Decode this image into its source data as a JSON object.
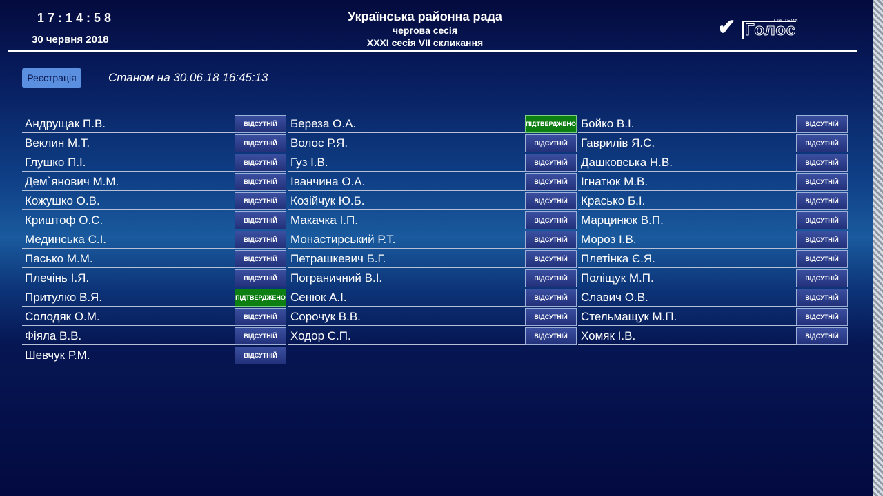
{
  "header": {
    "time": "17:14:58",
    "date": "30 червня 2018",
    "title": "Українська районна рада",
    "subtitle": "чергова сесія",
    "session": "XXXI сесія VII скликання",
    "logo_small": "СИСТЕМА",
    "logo": "Голос"
  },
  "toolbar": {
    "button": "Реєстрація",
    "status": "Станом на 30.06.18 16:45:13"
  },
  "columns": [
    [
      {
        "name": "Андрущак П.В.",
        "status": "ВІДСУТНІЙ"
      },
      {
        "name": "Веклин М.Т.",
        "status": "ВІДСУТНІЙ"
      },
      {
        "name": "Глушко П.І.",
        "status": "ВІДСУТНІЙ"
      },
      {
        "name": "Дем`янович М.М.",
        "status": "ВІДСУТНІЙ"
      },
      {
        "name": "Кожушко О.В.",
        "status": "ВІДСУТНІЙ"
      },
      {
        "name": "Криштоф О.С.",
        "status": "ВІДСУТНІЙ"
      },
      {
        "name": "Мединська С.І.",
        "status": "ВІДСУТНІЙ"
      },
      {
        "name": "Пасько М.М.",
        "status": "ВІДСУТНІЙ"
      },
      {
        "name": "Плечінь І.Я.",
        "status": "ВІДСУТНІЙ"
      },
      {
        "name": "Притулко В.Я.",
        "status": "ПІДТВЕРДЖЕНО"
      },
      {
        "name": "Солодяк О.М.",
        "status": "ВІДСУТНІЙ"
      },
      {
        "name": "Фіяла В.В.",
        "status": "ВІДСУТНІЙ"
      },
      {
        "name": "Шевчук Р.М.",
        "status": "ВІДСУТНІЙ"
      }
    ],
    [
      {
        "name": "Береза О.А.",
        "status": "ПІДТВЕРДЖЕНО"
      },
      {
        "name": "Волос Р.Я.",
        "status": "ВІДСУТНІЙ"
      },
      {
        "name": "Гуз І.В.",
        "status": "ВІДСУТНІЙ"
      },
      {
        "name": "Іванчина О.А.",
        "status": "ВІДСУТНІЙ"
      },
      {
        "name": "Козійчук Ю.Б.",
        "status": "ВІДСУТНІЙ"
      },
      {
        "name": "Макачка І.П.",
        "status": "ВІДСУТНІЙ"
      },
      {
        "name": "Монастирський Р.Т.",
        "status": "ВІДСУТНІЙ"
      },
      {
        "name": "Петрашкевич Б.Г.",
        "status": "ВІДСУТНІЙ"
      },
      {
        "name": "Пограничний В.І.",
        "status": "ВІДСУТНІЙ"
      },
      {
        "name": "Сенюк А.І.",
        "status": "ВІДСУТНІЙ"
      },
      {
        "name": "Сорочук В.В.",
        "status": "ВІДСУТНІЙ"
      },
      {
        "name": "Ходор С.П.",
        "status": "ВІДСУТНІЙ"
      }
    ],
    [
      {
        "name": "Бойко В.І.",
        "status": "ВІДСУТНІЙ"
      },
      {
        "name": "Гаврилів Я.С.",
        "status": "ВІДСУТНІЙ"
      },
      {
        "name": "Дашковська Н.В.",
        "status": "ВІДСУТНІЙ"
      },
      {
        "name": "Ігнатюк М.В.",
        "status": "ВІДСУТНІЙ"
      },
      {
        "name": "Красько Б.І.",
        "status": "ВІДСУТНІЙ"
      },
      {
        "name": "Марцинюк В.П.",
        "status": "ВІДСУТНІЙ"
      },
      {
        "name": "Мороз І.В.",
        "status": "ВІДСУТНІЙ"
      },
      {
        "name": "Плетінка Є.Я.",
        "status": "ВІДСУТНІЙ"
      },
      {
        "name": "Поліщук М.П.",
        "status": "ВІДСУТНІЙ"
      },
      {
        "name": "Славич О.В.",
        "status": "ВІДСУТНІЙ"
      },
      {
        "name": "Стельмащук М.П.",
        "status": "ВІДСУТНІЙ"
      },
      {
        "name": "Хомяк І.В.",
        "status": "ВІДСУТНІЙ"
      }
    ]
  ]
}
